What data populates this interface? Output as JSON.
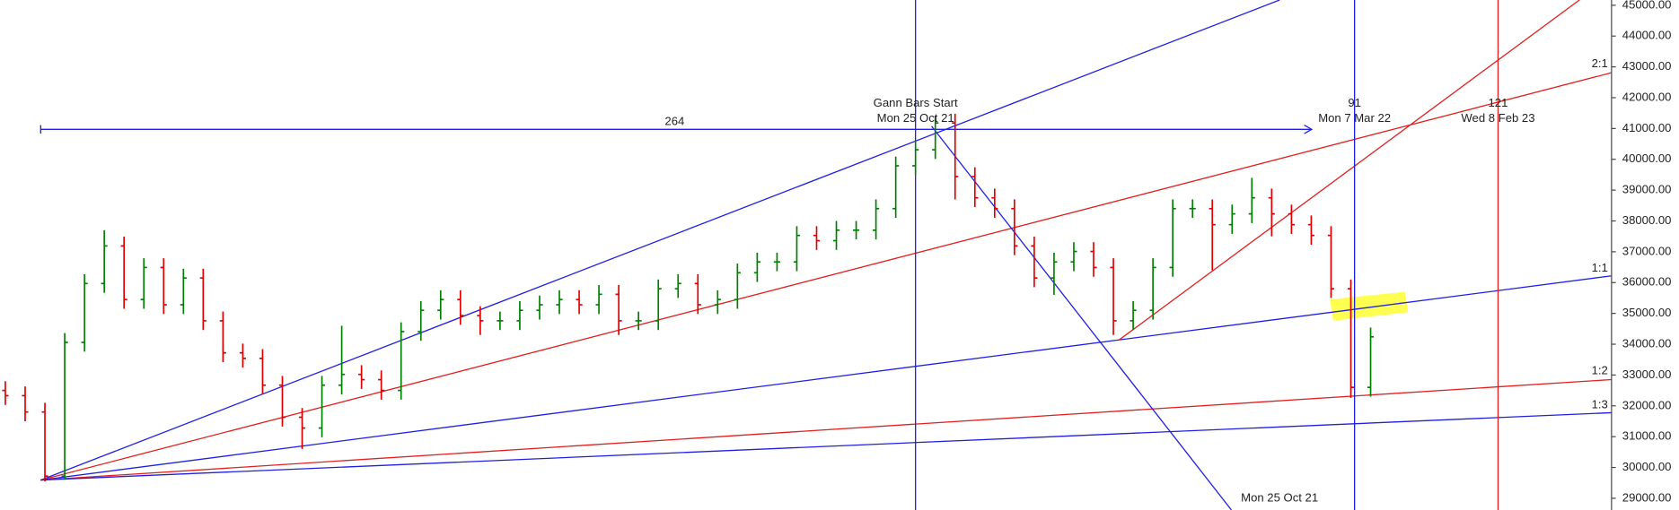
{
  "chart_data": {
    "type": "ohlc",
    "categories": [
      null,
      null,
      null,
      null,
      null,
      null,
      null,
      null,
      null,
      null,
      null,
      null,
      null,
      null,
      null,
      null,
      null,
      null,
      null,
      null,
      null,
      null,
      null,
      null,
      null,
      null,
      null,
      null,
      null,
      null,
      null,
      null,
      null,
      null,
      null,
      null,
      null,
      null,
      null,
      null,
      null,
      null,
      null,
      null,
      null,
      null,
      null,
      null,
      null,
      null,
      null,
      null,
      null,
      null,
      null,
      null,
      null,
      null,
      null,
      null,
      null,
      null,
      null,
      null,
      null,
      null,
      null,
      null,
      null,
      null
    ],
    "open": [
      32500,
      32330,
      31800,
      29720,
      34060,
      35970,
      37190,
      35450,
      36490,
      35280,
      36150,
      34760,
      33720,
      33540,
      32670,
      31630,
      31280,
      32670,
      33020,
      32850,
      32500,
      34410,
      35100,
      35450,
      34930,
      34760,
      34760,
      35100,
      35280,
      35450,
      35280,
      35620,
      34760,
      34760,
      35800,
      35970,
      35280,
      35450,
      36320,
      36670,
      36670,
      37530,
      37360,
      37700,
      37700,
      38400,
      39790,
      40310,
      41180,
      39440,
      38750,
      38400,
      37190,
      36150,
      36670,
      37010,
      36490,
      34760,
      35100,
      36490,
      38400,
      38400,
      37880,
      38230,
      38750,
      38230,
      37880,
      37530,
      35800,
      32600
    ],
    "high": [
      32800,
      32630,
      32100,
      34360,
      36270,
      37700,
      37490,
      36790,
      36790,
      36450,
      36450,
      35060,
      34020,
      33840,
      32970,
      31930,
      32970,
      34600,
      33320,
      33150,
      34710,
      35400,
      35750,
      35750,
      35230,
      35060,
      35400,
      35580,
      35750,
      35750,
      35920,
      35920,
      35060,
      36100,
      36270,
      36270,
      35750,
      36620,
      36970,
      36970,
      37830,
      37830,
      38000,
      38000,
      38700,
      40090,
      40610,
      41400,
      41480,
      39740,
      39050,
      38700,
      37490,
      36970,
      37310,
      37310,
      36790,
      35400,
      36790,
      38700,
      38700,
      38700,
      38530,
      39400,
      39050,
      38530,
      38180,
      37830,
      36100,
      34540
    ],
    "low": [
      32030,
      31500,
      29550,
      29600,
      33760,
      35670,
      35150,
      35150,
      34980,
      34980,
      34460,
      33420,
      33240,
      32370,
      31330,
      30600,
      30980,
      32370,
      32550,
      32200,
      32200,
      34110,
      34800,
      34630,
      34300,
      34460,
      34460,
      34800,
      34980,
      34980,
      34980,
      34300,
      34460,
      34460,
      35500,
      34980,
      34980,
      35150,
      36020,
      36370,
      36370,
      37060,
      37060,
      37400,
      37400,
      38100,
      39490,
      40010,
      38700,
      38450,
      38100,
      36890,
      35850,
      35600,
      36370,
      36190,
      34300,
      34460,
      34800,
      36190,
      38100,
      36400,
      37580,
      37930,
      37500,
      37580,
      37230,
      35500,
      32260,
      32300
    ],
    "close": [
      32330,
      31800,
      29720,
      34060,
      35970,
      37190,
      35450,
      36490,
      35280,
      36150,
      34760,
      33720,
      33540,
      32670,
      31630,
      31280,
      32670,
      33020,
      32850,
      32500,
      34410,
      35100,
      35450,
      34930,
      34760,
      34760,
      35100,
      35280,
      35450,
      35280,
      35620,
      34760,
      34760,
      35800,
      35970,
      35280,
      35450,
      36320,
      36670,
      36670,
      37530,
      37360,
      37700,
      37700,
      38400,
      39790,
      40310,
      41180,
      39440,
      38750,
      38400,
      37190,
      36150,
      36670,
      37010,
      36490,
      34760,
      35100,
      36490,
      38400,
      38400,
      37880,
      38230,
      38750,
      38230,
      37880,
      37530,
      35800,
      32600,
      34240
    ],
    "up_color": "#008000",
    "down_color": "#e00000",
    "ylim": [
      28620,
      45170
    ],
    "yticks": [
      {
        "value": 29000,
        "label": "29000.00"
      },
      {
        "value": 30000,
        "label": "30000.00"
      },
      {
        "value": 31000,
        "label": "31000.00"
      },
      {
        "value": 32000,
        "label": "32000.00"
      },
      {
        "value": 33000,
        "label": "33000.00"
      },
      {
        "value": 34000,
        "label": "34000.00"
      },
      {
        "value": 35000,
        "label": "35000.00"
      },
      {
        "value": 36000,
        "label": "36000.00"
      },
      {
        "value": 37000,
        "label": "37000.00"
      },
      {
        "value": 38000,
        "label": "38000.00"
      },
      {
        "value": 39000,
        "label": "39000.00"
      },
      {
        "value": 40000,
        "label": "40000.00"
      },
      {
        "value": 41000,
        "label": "41000.00"
      },
      {
        "value": 42000,
        "label": "42000.00"
      },
      {
        "value": 43000,
        "label": "43000.00"
      },
      {
        "value": 44000,
        "label": "44000.00"
      },
      {
        "value": 45000,
        "label": "45000.00"
      }
    ],
    "axis_side": "right",
    "annotations": [
      "264",
      "Gann Bars Start",
      "Mon 25 Oct 21",
      "91",
      "Mon 7 Mar 22",
      "121",
      "Wed 8 Feb 23",
      "Mon 25 Oct 21",
      "2:1",
      "1:1",
      "1:2",
      "1:3"
    ]
  }
}
